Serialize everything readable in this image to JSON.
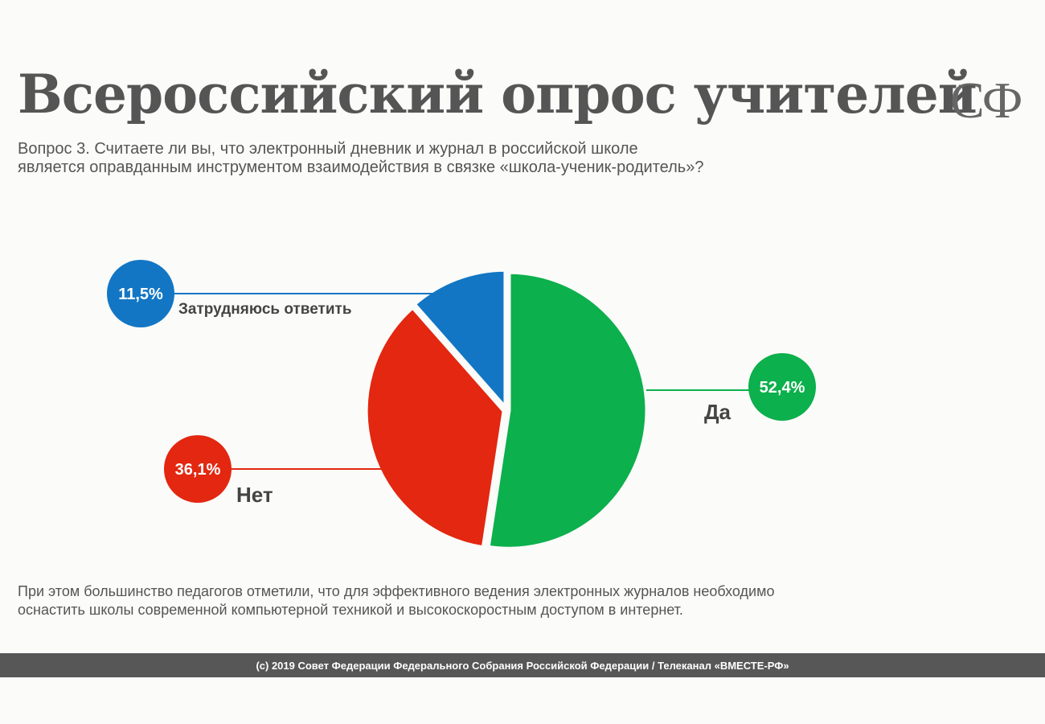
{
  "header": {
    "title": "Всероссийский опрос учителей",
    "logo": "СФ"
  },
  "question": {
    "line1": "Вопрос 3. Считаете ли вы, что электронный дневник и журнал в российской школе",
    "line2": "является оправданным инструментом взаимодействия в связке «школа-ученик-родитель»?"
  },
  "chart_data": {
    "type": "pie",
    "slices": [
      {
        "label": "Да",
        "value": 52.4,
        "display": "52,4%",
        "color": "#0cb04c"
      },
      {
        "label": "Нет",
        "value": 36.1,
        "display": "36,1%",
        "color": "#e32710"
      },
      {
        "label": "Затрудняюсь ответить",
        "value": 11.5,
        "display": "11,5%",
        "color": "#1276c4"
      }
    ]
  },
  "footnote": {
    "line1": "При этом большинство педагогов отметили, что для эффективного ведения электронных журналов необходимо",
    "line2": "оснастить школы современной компьютерной техникой и высокоскоростным доступом в интернет."
  },
  "footer": {
    "text": "(c) 2019 Совет Федерации Федерального Собрания Российской Федерации / Телеканал «ВМЕСТЕ-РФ»"
  }
}
